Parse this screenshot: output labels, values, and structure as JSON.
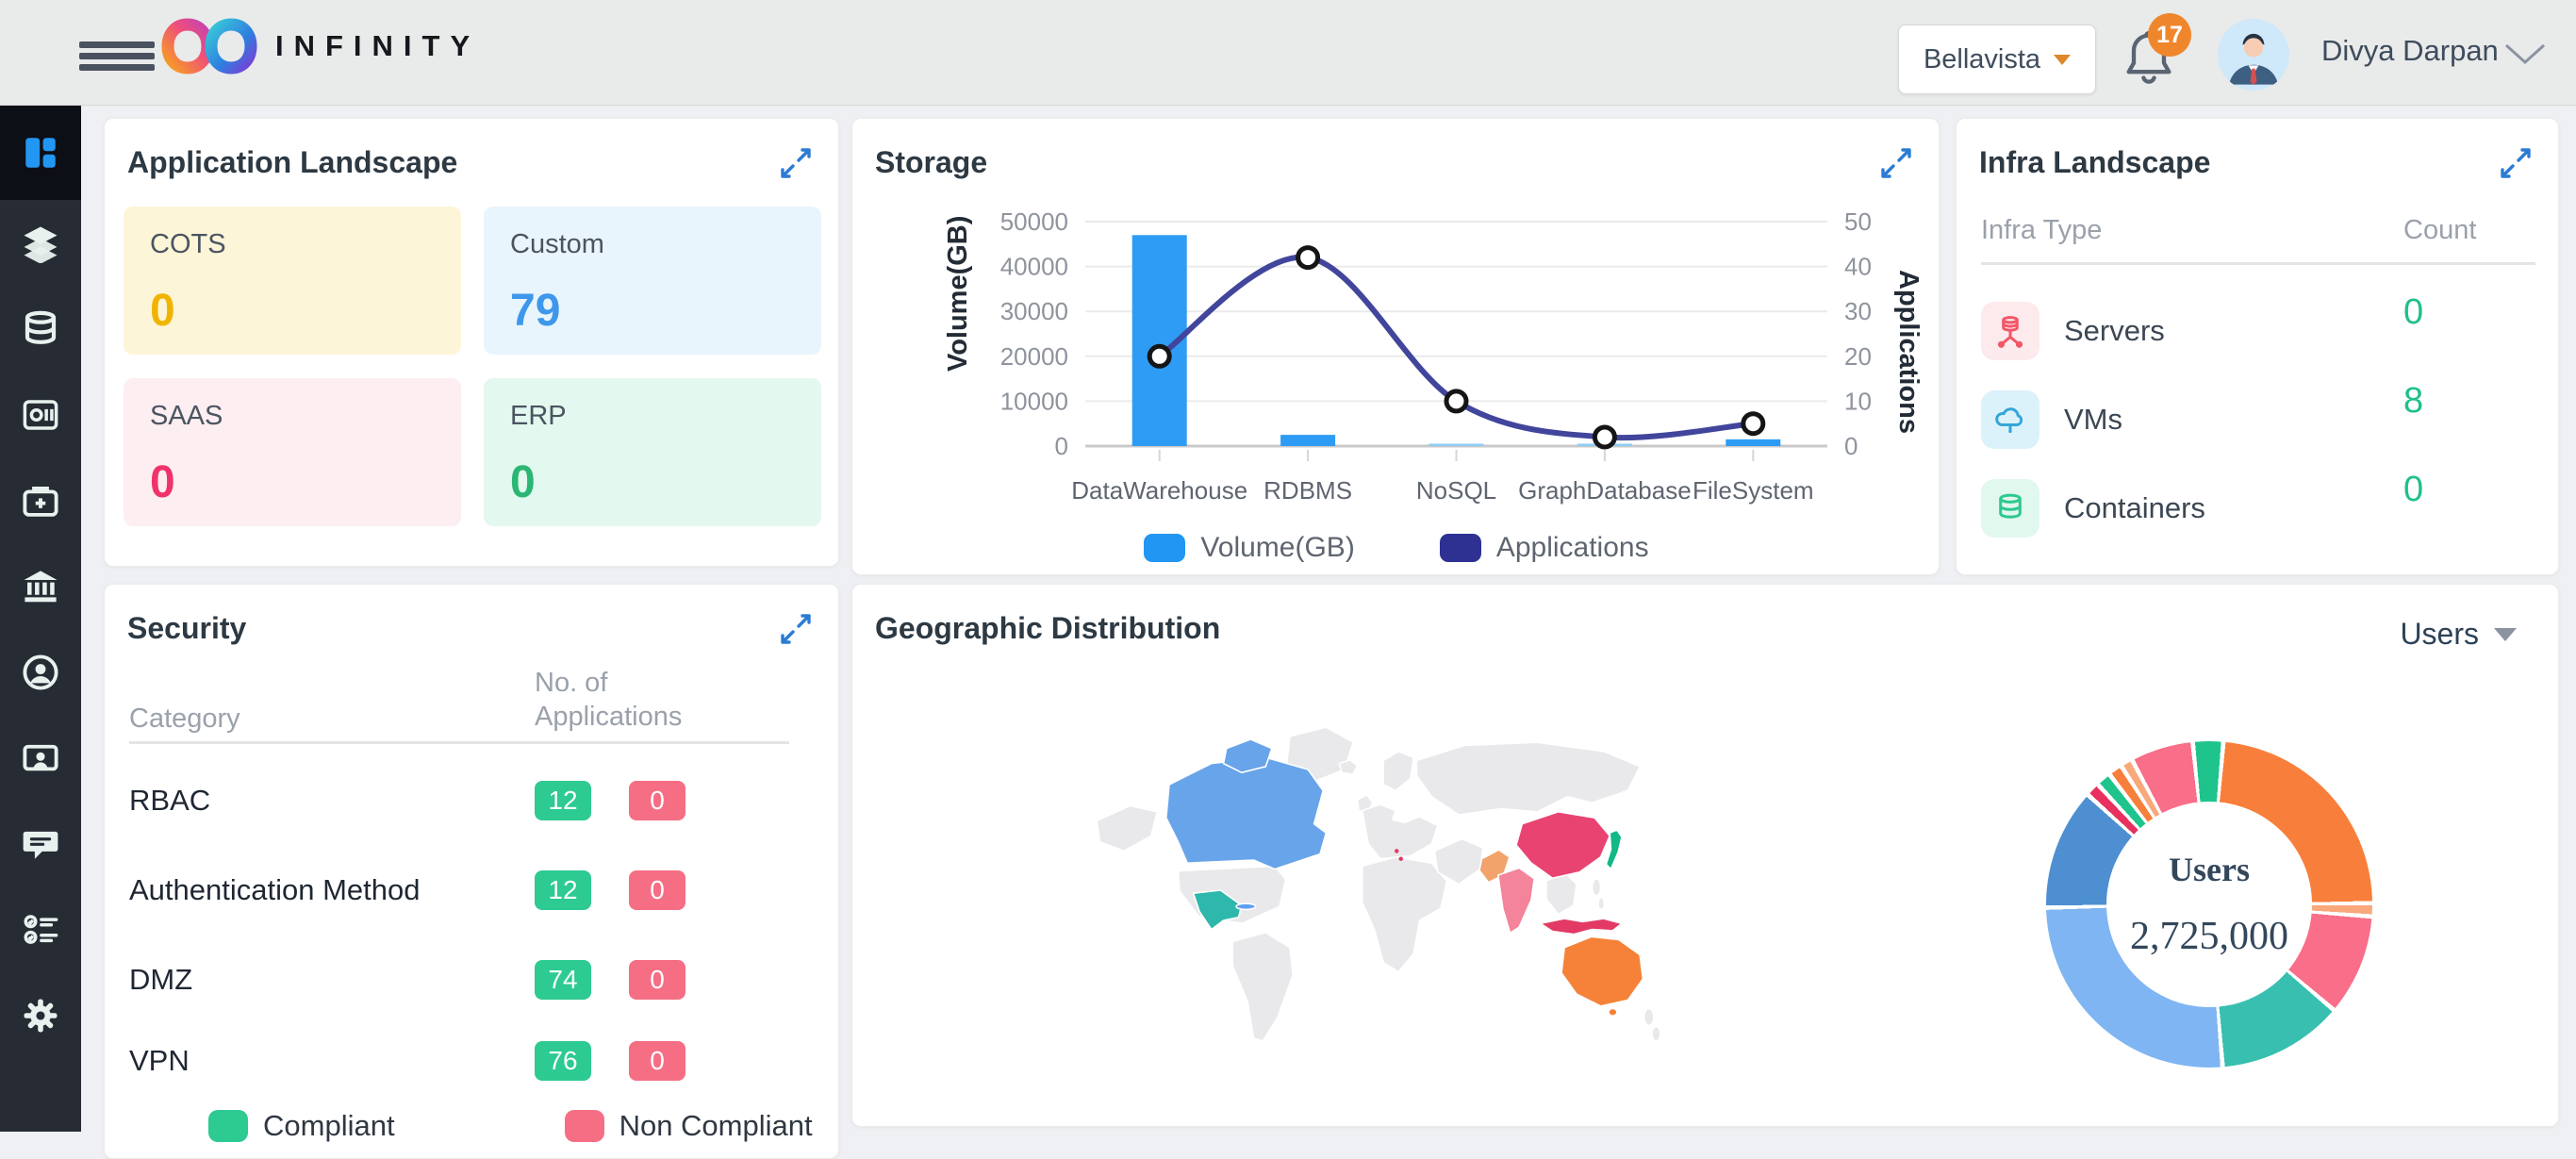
{
  "header": {
    "brand": "INFINITY",
    "tenant": {
      "label": "Bellavista"
    },
    "notifications": {
      "count": "17"
    },
    "user": {
      "name": "Divya Darpan"
    }
  },
  "sidebar": {
    "items": [
      {
        "icon": "dashboard-icon",
        "active": true
      },
      {
        "icon": "layers-icon"
      },
      {
        "icon": "database-icon"
      },
      {
        "icon": "catalog-icon"
      },
      {
        "icon": "add-box-icon"
      },
      {
        "icon": "bank-icon"
      },
      {
        "icon": "user-circle-icon"
      },
      {
        "icon": "screen-user-icon"
      },
      {
        "icon": "chat-icon"
      },
      {
        "icon": "checklist-icon"
      },
      {
        "icon": "gear-icon"
      }
    ]
  },
  "cards": {
    "application_landscape": {
      "title": "Application Landscape",
      "tiles": [
        {
          "label": "COTS",
          "value": "0",
          "bg": "#fdf5d8",
          "color": "#f0b400"
        },
        {
          "label": "Custom",
          "value": "79",
          "bg": "#e9f5fc",
          "color": "#3e97ea"
        },
        {
          "label": "SAAS",
          "value": "0",
          "bg": "#fdeef2",
          "color": "#f0336b"
        },
        {
          "label": "ERP",
          "value": "0",
          "bg": "#e3f8ee",
          "color": "#2bb673"
        }
      ]
    },
    "storage": {
      "title": "Storage",
      "chart_data": {
        "type": "combo",
        "categories": [
          "DataWarehouse",
          "RDBMS",
          "NoSQL",
          "GraphDatabase",
          "FileSystem"
        ],
        "series": [
          {
            "name": "Volume(GB)",
            "type": "bar",
            "axis": "left",
            "values": [
              47000,
              2500,
              400,
              300,
              1500
            ],
            "bar_colors": [
              "#2e9cf4",
              "#2e9cf4",
              "#8ecdf8",
              "#8ecdf8",
              "#2e9cf4"
            ]
          },
          {
            "name": "Applications",
            "type": "line",
            "axis": "right",
            "values": [
              20,
              42,
              10,
              2,
              5
            ],
            "color": "#41459b"
          }
        ],
        "y_left": {
          "label": "Volume(GB)",
          "min": 0,
          "max": 50000,
          "ticks": [
            0,
            10000,
            20000,
            30000,
            40000,
            50000
          ]
        },
        "y_right": {
          "label": "Applications",
          "min": 0,
          "max": 50,
          "ticks": [
            0,
            10,
            20,
            30,
            40,
            50
          ]
        },
        "legend": [
          {
            "label": "Volume(GB)",
            "color": "#2196f3"
          },
          {
            "label": "Applications",
            "color": "#2e3192"
          }
        ],
        "grid": true
      }
    },
    "infra_landscape": {
      "title": "Infra Landscape",
      "columns": [
        "Infra Type",
        "Count"
      ],
      "rows": [
        {
          "label": "Servers",
          "count": "0",
          "icon": "server-icon",
          "icon_bg": "#fdeaec",
          "icon_color": "#f25767"
        },
        {
          "label": "VMs",
          "count": "8",
          "icon": "cloud-icon",
          "icon_bg": "#dcf2fa",
          "icon_color": "#35a6d9"
        },
        {
          "label": "Containers",
          "count": "0",
          "icon": "container-icon",
          "icon_bg": "#e1f8ef",
          "icon_color": "#2dc98e"
        }
      ]
    },
    "security": {
      "title": "Security",
      "columns": [
        "Category",
        "No. of Applications"
      ],
      "rows": [
        {
          "category": "RBAC",
          "compliant": "12",
          "non_compliant": "0"
        },
        {
          "category": "Authentication Method",
          "compliant": "12",
          "non_compliant": "0"
        },
        {
          "category": "DMZ",
          "compliant": "74",
          "non_compliant": "0"
        },
        {
          "category": "VPN",
          "compliant": "76",
          "non_compliant": "0"
        }
      ],
      "legend": [
        {
          "label": "Compliant",
          "color": "#2dca92"
        },
        {
          "label": "Non Compliant",
          "color": "#f66e84"
        }
      ]
    },
    "geographic_distribution": {
      "title": "Geographic Distribution",
      "metric_selector": "Users",
      "chart_data": {
        "type": "pie",
        "title": "Users",
        "center_label": "Users",
        "center_value": "2,725,000",
        "slices": [
          {
            "name": "segment-1",
            "color": "#1fc48c",
            "pct": 3.0
          },
          {
            "name": "segment-2",
            "color": "#f87f3b",
            "pct": 23.5
          },
          {
            "name": "segment-3",
            "color": "#f9a87c",
            "pct": 1.3
          },
          {
            "name": "segment-4",
            "color": "#f96e88",
            "pct": 10.0
          },
          {
            "name": "segment-5",
            "color": "#38bfb0",
            "pct": 12.5
          },
          {
            "name": "segment-6",
            "color": "#7fb5f2",
            "pct": 26.0
          },
          {
            "name": "segment-7",
            "color": "#4e8fd2",
            "pct": 12.0
          },
          {
            "name": "segment-8",
            "color": "#e8315e",
            "pct": 1.4
          },
          {
            "name": "segment-9",
            "color": "#1fc48c",
            "pct": 1.5
          },
          {
            "name": "segment-10",
            "color": "#f87f3b",
            "pct": 1.4
          },
          {
            "name": "segment-11",
            "color": "#f9a87c",
            "pct": 1.2
          },
          {
            "name": "segment-12",
            "color": "#f96e88",
            "pct": 6.2
          }
        ]
      },
      "map": {
        "highlights": [
          {
            "country": "canada",
            "color": "#68a4e9"
          },
          {
            "country": "mexico",
            "color": "#2eb8ab"
          },
          {
            "country": "cuba",
            "color": "#5f9ff0"
          },
          {
            "country": "china",
            "color": "#e94372"
          },
          {
            "country": "india",
            "color": "#f4849a"
          },
          {
            "country": "pakistan",
            "color": "#f2a26b"
          },
          {
            "country": "japan",
            "color": "#12b886"
          },
          {
            "country": "indonesia",
            "color": "#e23a64"
          },
          {
            "country": "australia",
            "color": "#f58238"
          },
          {
            "country": "europe-dots",
            "color": "#e23a5f"
          }
        ]
      }
    }
  }
}
